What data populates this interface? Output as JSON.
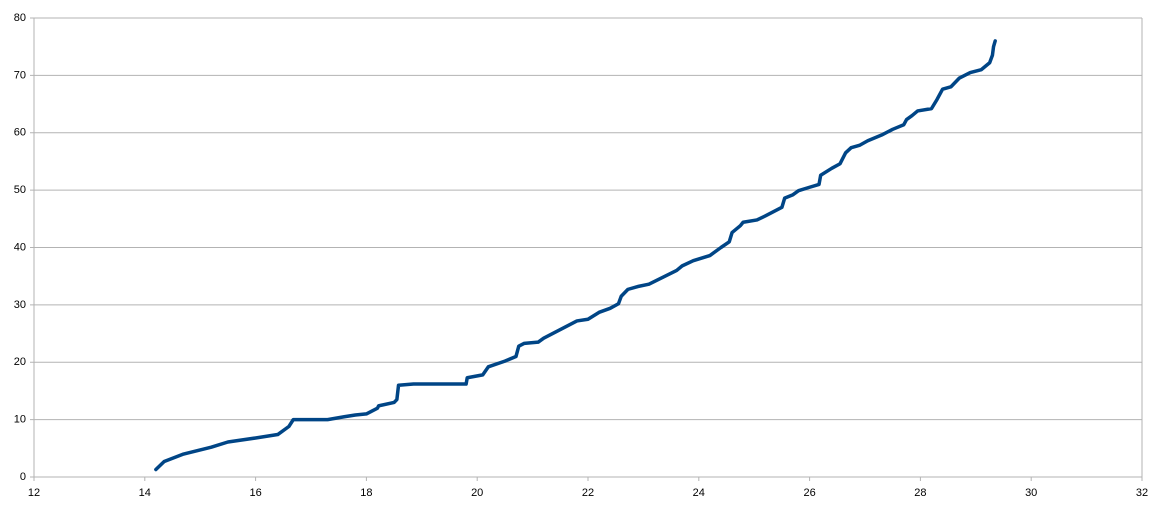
{
  "chart_data": {
    "type": "line",
    "color": "#004586",
    "grid": true,
    "x": [
      14.2,
      14.35,
      14.7,
      15.2,
      15.5,
      16.0,
      16.4,
      16.6,
      16.68,
      17.3,
      17.6,
      17.8,
      18.0,
      18.2,
      18.22,
      18.5,
      18.55,
      18.58,
      18.85,
      19.2,
      19.8,
      19.82,
      20.1,
      20.2,
      20.5,
      20.7,
      20.75,
      20.85,
      21.1,
      21.2,
      21.4,
      21.6,
      21.8,
      22.0,
      22.2,
      22.4,
      22.55,
      22.6,
      22.72,
      22.9,
      23.1,
      23.35,
      23.6,
      23.7,
      23.9,
      24.2,
      24.4,
      24.55,
      24.6,
      24.75,
      24.8,
      25.05,
      25.2,
      25.5,
      25.55,
      25.7,
      25.8,
      26.0,
      26.17,
      26.2,
      26.4,
      26.55,
      26.65,
      26.75,
      26.9,
      27.05,
      27.3,
      27.5,
      27.7,
      27.75,
      27.85,
      27.95,
      28.2,
      28.3,
      28.4,
      28.55,
      28.7,
      28.9,
      29.1,
      29.25,
      29.3,
      29.32,
      29.35
    ],
    "values": [
      1.3,
      2.7,
      4.0,
      5.2,
      6.1,
      6.8,
      7.4,
      8.8,
      10,
      10,
      10.5,
      10.8,
      11,
      12,
      12.4,
      13.0,
      13.5,
      16,
      16.2,
      16.2,
      16.2,
      17.3,
      17.8,
      19.2,
      20.2,
      21,
      22.8,
      23.3,
      23.5,
      24.2,
      25.2,
      26.2,
      27.2,
      27.5,
      28.7,
      29.4,
      30.2,
      31.5,
      32.7,
      33.2,
      33.6,
      34.8,
      36,
      36.8,
      37.7,
      38.6,
      40.0,
      41.0,
      42.6,
      43.8,
      44.4,
      44.8,
      45.5,
      47.0,
      48.6,
      49.2,
      49.9,
      50.5,
      51.0,
      52.6,
      53.8,
      54.6,
      56.5,
      57.4,
      57.8,
      58.6,
      59.6,
      60.6,
      61.4,
      62.3,
      63.0,
      63.8,
      64.2,
      65.8,
      67.6,
      68.0,
      69.5,
      70.5,
      71.0,
      72.2,
      73.5,
      75,
      76
    ],
    "xlim": [
      12,
      32
    ],
    "xticks": [
      12,
      14,
      16,
      18,
      20,
      22,
      24,
      26,
      28,
      30,
      32
    ],
    "ylim": [
      0,
      80
    ],
    "yticks": [
      0,
      10,
      20,
      30,
      40,
      50,
      60,
      70,
      80
    ]
  }
}
